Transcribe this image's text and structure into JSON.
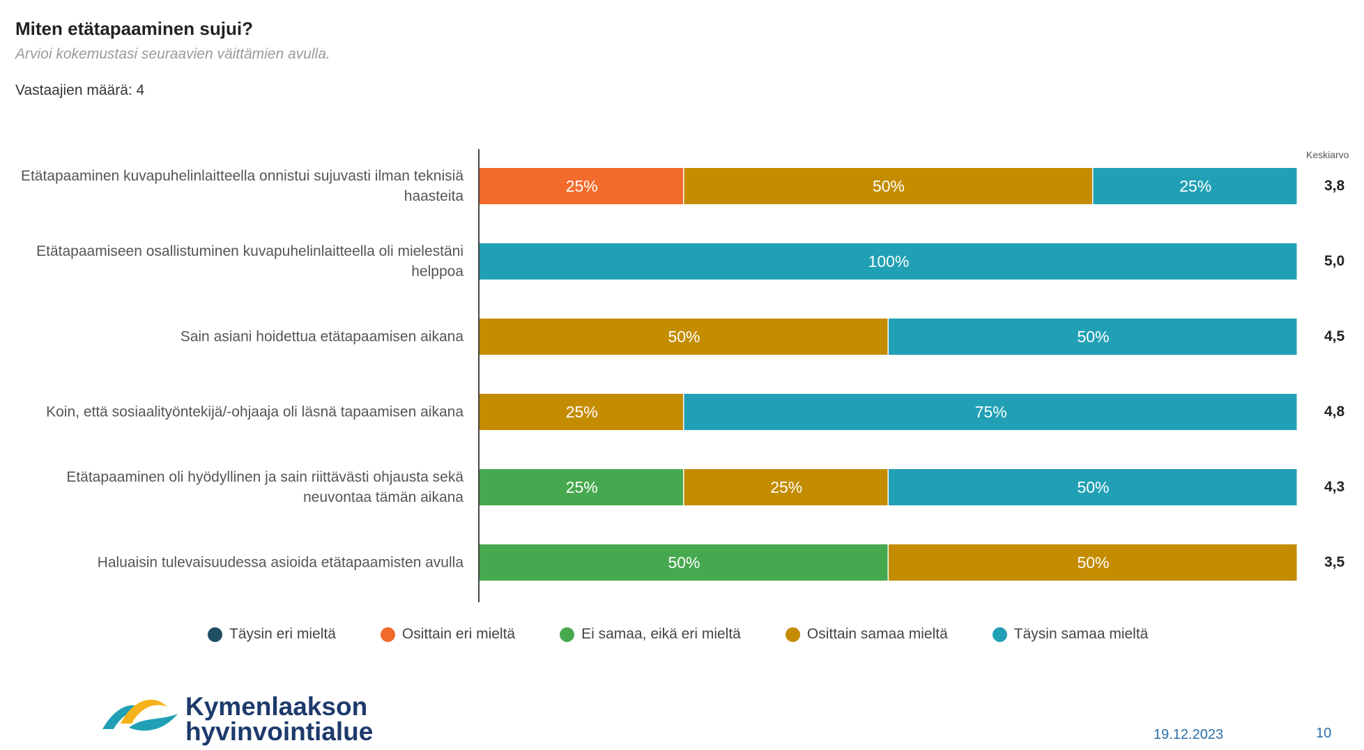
{
  "header": {
    "title": "Miten etätapaaminen sujui?",
    "subtitle": "Arvioi kokemustasi seuraavien väittämien avulla.",
    "respondents": "Vastaajien määrä: 4"
  },
  "chart_data": {
    "type": "bar",
    "orientation": "horizontal-stacked-100",
    "categories": [
      "Etätapaaminen kuvapuhelinlaitteella onnistui sujuvasti ilman teknisiä haasteita",
      "Etätapaamiseen osallistuminen kuvapuhelinlaitteella oli mielestäni helppoa",
      "Sain asiani hoidettua etätapaamisen aikana",
      "Koin, että sosiaalityöntekijä/-ohjaaja oli läsnä tapaamisen aikana",
      "Etätapaaminen oli hyödyllinen ja sain riittävästi ohjausta sekä neuvontaa tämän aikana",
      "Haluaisin tulevaisuudessa asioida etätapaamisten avulla"
    ],
    "series": [
      {
        "name": "Täysin eri mieltä",
        "color": "#1f4e63",
        "values": [
          0,
          0,
          0,
          0,
          0,
          0
        ]
      },
      {
        "name": "Osittain eri mieltä",
        "color": "#f26a2c",
        "values": [
          25,
          0,
          0,
          0,
          0,
          0
        ]
      },
      {
        "name": "Ei samaa, eikä eri mieltä",
        "color": "#47a94f",
        "values": [
          0,
          0,
          0,
          0,
          25,
          50
        ]
      },
      {
        "name": "Osittain samaa mieltä",
        "color": "#c48c00",
        "values": [
          50,
          0,
          50,
          25,
          25,
          50
        ]
      },
      {
        "name": "Täysin samaa mieltä",
        "color": "#21a0b5",
        "values": [
          25,
          100,
          50,
          75,
          50,
          0
        ]
      }
    ],
    "averages_label": "Keskiarvo",
    "averages": [
      "3,8",
      "5,0",
      "4,5",
      "4,8",
      "4,3",
      "3,5"
    ],
    "value_suffix": "%",
    "xlim": [
      0,
      100
    ],
    "legend_position": "bottom"
  },
  "footer": {
    "logo_line1": "Kymenlaakson",
    "logo_line2": "hyvinvointialue",
    "date": "19.12.2023",
    "page": "10"
  }
}
